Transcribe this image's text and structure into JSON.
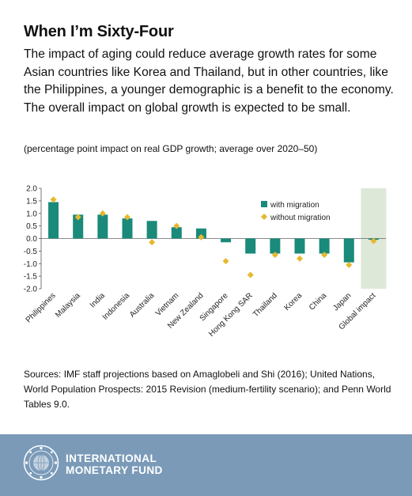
{
  "header": {
    "title": "When I’m Sixty-Four",
    "subtitle": "The impact of aging could reduce average growth rates for some Asian countries like Korea and Thailand, but in other countries, like the Philippines, a younger demographic is a benefit to the economy. The overall impact on global growth is expected to be small.",
    "note": "(percentage point impact on real GDP growth; average over 2020–50)"
  },
  "chart_data": {
    "type": "bar",
    "categories": [
      "Philippines",
      "Malaysia",
      "India",
      "Indonesia",
      "Australia",
      "Vietnam",
      "New Zealand",
      "Singapore",
      "Hong Kong SAR",
      "Thailand",
      "Korea",
      "China",
      "Japan",
      "Global impact"
    ],
    "series": [
      {
        "name": "with migration",
        "type": "bar",
        "color": "#1a8a7a",
        "values": [
          1.45,
          0.95,
          0.95,
          0.8,
          0.7,
          0.45,
          0.4,
          -0.15,
          -0.6,
          -0.6,
          -0.6,
          -0.6,
          -0.95,
          -0.05
        ]
      },
      {
        "name": "without migration",
        "type": "scatter",
        "marker": "diamond",
        "color": "#e6b82e",
        "values": [
          1.55,
          0.85,
          1.0,
          0.85,
          -0.15,
          0.5,
          0.05,
          -0.9,
          -1.45,
          -0.65,
          -0.8,
          -0.65,
          -1.05,
          -0.1
        ]
      }
    ],
    "yticks": [
      "2.0",
      "1.5",
      "1.0",
      "0.5",
      "0.0",
      "-0.5",
      "-1.0",
      "-1.5",
      "-2.0"
    ],
    "ylim": [
      -2.0,
      2.0
    ],
    "highlight_category": "Global impact",
    "highlight_color": "#dde8d8",
    "legend_position": "top-right",
    "grid": false
  },
  "sources": {
    "text": "Sources: IMF staff projections based on Amaglobeli and Shi (2016); United Nations, World Population Prospects: 2015 Revision (medium-fertility scenario); and Penn World Tables 9.0."
  },
  "footer": {
    "org_line1": "INTERNATIONAL",
    "org_line2": "MONETARY FUND",
    "background": "#7a9ab8",
    "logo_icon": "imf-seal-icon"
  }
}
